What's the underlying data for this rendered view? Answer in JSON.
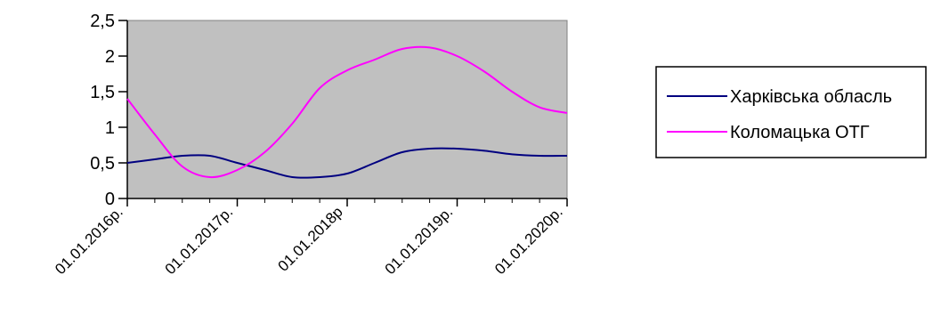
{
  "chart_data": {
    "type": "line",
    "title": "",
    "xlabel": "",
    "ylabel": "",
    "categories": [
      "01.01.2016р.",
      "01.01.2017р.",
      "01.01.2018р",
      "01.01.2019р.",
      "01.01.2020р."
    ],
    "x": [
      0,
      0.25,
      0.5,
      0.75,
      1,
      1.25,
      1.5,
      1.75,
      2,
      2.25,
      2.5,
      2.75,
      3,
      3.25,
      3.5,
      3.75,
      4
    ],
    "ylim": [
      0,
      2.5
    ],
    "yticks": [
      "0",
      "0,5",
      "1",
      "1,5",
      "2",
      "2,5"
    ],
    "grid": false,
    "plot_background": "#c0c0c0",
    "legend_position": "right",
    "series": [
      {
        "name": "Харківська обласль",
        "color": "#000080",
        "values": [
          0.5,
          0.55,
          0.6,
          0.6,
          0.5,
          0.4,
          0.3,
          0.3,
          0.35,
          0.5,
          0.65,
          0.7,
          0.7,
          0.67,
          0.62,
          0.6,
          0.6
        ]
      },
      {
        "name": "Коломацька ОТГ",
        "color": "#ff00ff",
        "values": [
          1.4,
          0.9,
          0.45,
          0.3,
          0.4,
          0.65,
          1.05,
          1.55,
          1.8,
          1.95,
          2.1,
          2.12,
          2.0,
          1.78,
          1.5,
          1.28,
          1.2
        ]
      }
    ]
  }
}
